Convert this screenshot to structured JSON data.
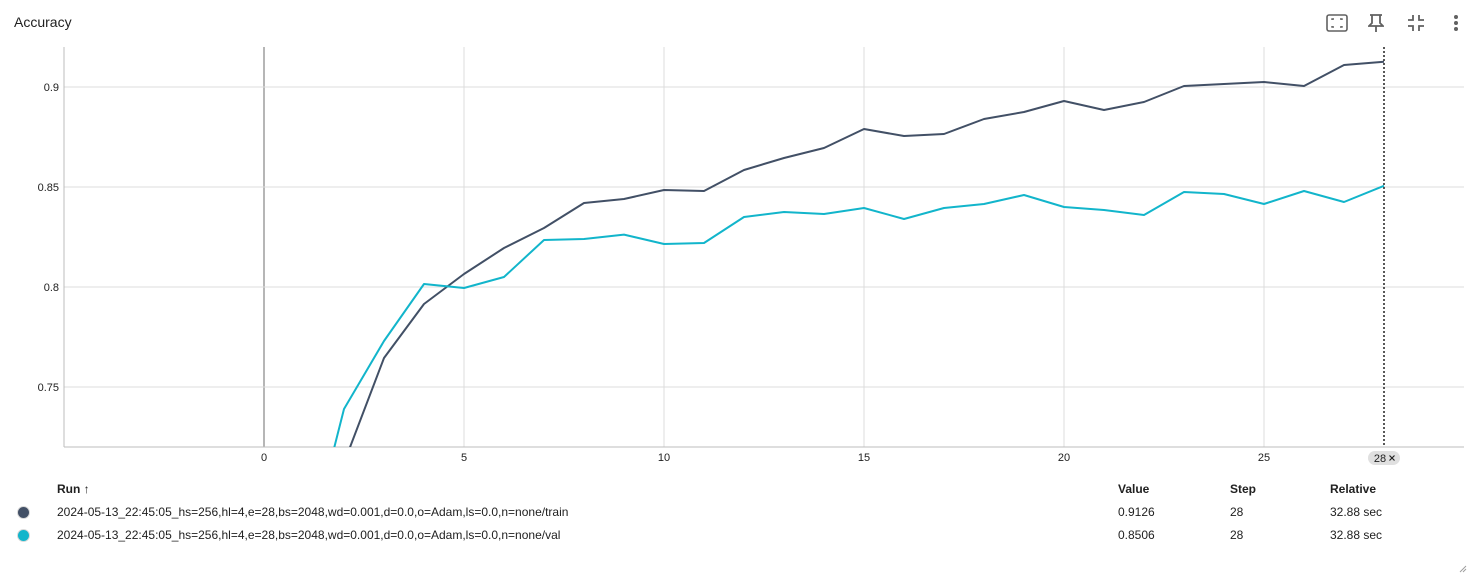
{
  "card": {
    "title": "Accuracy",
    "toolbar": [
      {
        "name": "fit-domain-icon"
      },
      {
        "name": "pin-icon"
      },
      {
        "name": "collapse-icon"
      },
      {
        "name": "more-vert-icon"
      }
    ]
  },
  "chart_data": {
    "type": "line",
    "title": "Accuracy",
    "xlabel": "",
    "ylabel": "",
    "xlim": [
      -5,
      30
    ],
    "ylim": [
      0.72,
      0.92
    ],
    "x_ticks": [
      "0",
      "5",
      "10",
      "15",
      "20",
      "25"
    ],
    "y_ticks": [
      "0.75",
      "0.8",
      "0.85",
      "0.9"
    ],
    "grid": true,
    "hover_step": 28,
    "hover_badge": "28",
    "series": [
      {
        "name": "2024-05-13_22:45:05_hs=256,hl=4,e=28,bs=2048,wd=0.001,d=0.0,o=Adam,ls=0.0,n=none/train",
        "color": "#425066",
        "x": [
          1,
          2,
          3,
          4,
          5,
          6,
          7,
          8,
          9,
          10,
          11,
          12,
          13,
          14,
          15,
          16,
          17,
          18,
          19,
          20,
          21,
          22,
          23,
          24,
          25,
          26,
          27,
          28
        ],
        "y": [
          0.655,
          0.712,
          0.7645,
          0.7915,
          0.8065,
          0.8195,
          0.8295,
          0.842,
          0.844,
          0.8485,
          0.848,
          0.8585,
          0.8645,
          0.8695,
          0.879,
          0.8755,
          0.8765,
          0.884,
          0.8875,
          0.893,
          0.8885,
          0.8925,
          0.9005,
          0.9015,
          0.9025,
          0.9005,
          0.911,
          0.9126
        ]
      },
      {
        "name": "2024-05-13_22:45:05_hs=256,hl=4,e=28,bs=2048,wd=0.001,d=0.0,o=Adam,ls=0.0,n=none/val",
        "color": "#12b5cb",
        "x": [
          1,
          2,
          3,
          4,
          5,
          6,
          7,
          8,
          9,
          10,
          11,
          12,
          13,
          14,
          15,
          16,
          17,
          18,
          19,
          20,
          21,
          22,
          23,
          24,
          25,
          26,
          27,
          28
        ],
        "y": [
          0.66,
          0.739,
          0.773,
          0.8015,
          0.7995,
          0.805,
          0.8235,
          0.824,
          0.8262,
          0.8215,
          0.822,
          0.835,
          0.8375,
          0.8365,
          0.8395,
          0.834,
          0.8395,
          0.8415,
          0.846,
          0.84,
          0.8385,
          0.836,
          0.8475,
          0.8465,
          0.8415,
          0.848,
          0.8425,
          0.8506
        ]
      }
    ]
  },
  "runs_table": {
    "headers": {
      "run": "Run",
      "sort_arrow": "↑",
      "value": "Value",
      "step": "Step",
      "relative": "Relative"
    },
    "rows": [
      {
        "color": "#425066",
        "name": "2024-05-13_22:45:05_hs=256,hl=4,e=28,bs=2048,wd=0.001,d=0.0,o=Adam,ls=0.0,n=none/train",
        "value": "0.9126",
        "step": "28",
        "relative": "32.88 sec"
      },
      {
        "color": "#12b5cb",
        "name": "2024-05-13_22:45:05_hs=256,hl=4,e=28,bs=2048,wd=0.001,d=0.0,o=Adam,ls=0.0,n=none/val",
        "value": "0.8506",
        "step": "28",
        "relative": "32.88 sec"
      }
    ]
  }
}
